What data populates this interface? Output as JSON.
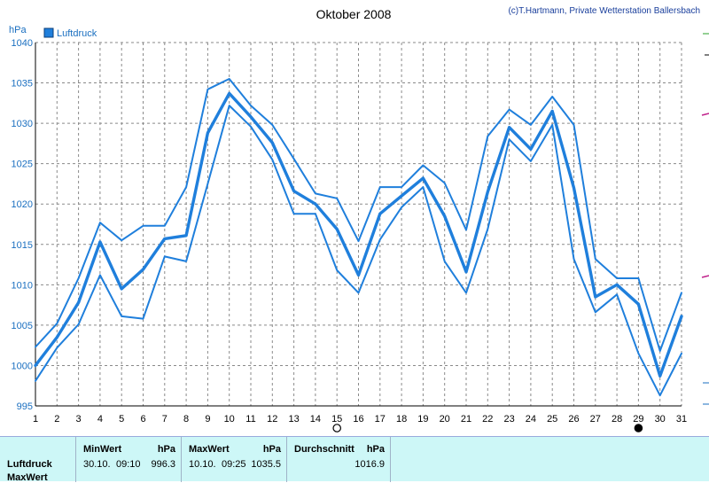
{
  "title": "Oktober 2008",
  "credit": "(c)T.Hartmann, Private Wetterstation Ballersbach",
  "legend": {
    "label": "Luftdruck",
    "color": "#1f7fdc"
  },
  "axis": {
    "unit": "hPa"
  },
  "chart_data": {
    "type": "line",
    "title": "Oktober 2008",
    "ylabel": "hPa",
    "ylim": [
      995,
      1040
    ],
    "yticks": [
      995,
      1000,
      1005,
      1010,
      1015,
      1020,
      1025,
      1030,
      1035,
      1040
    ],
    "x": [
      1,
      2,
      3,
      4,
      5,
      6,
      7,
      8,
      9,
      10,
      11,
      12,
      13,
      14,
      15,
      16,
      17,
      18,
      19,
      20,
      21,
      22,
      23,
      24,
      25,
      26,
      27,
      28,
      29,
      30,
      31
    ],
    "grid": true,
    "legend_position": "top-left",
    "series": [
      {
        "name": "Luftdruck",
        "role": "max",
        "values": [
          1002.3,
          1005.2,
          1010.8,
          1017.7,
          1015.5,
          1017.3,
          1017.3,
          1022.1,
          1034.2,
          1035.5,
          1032.2,
          1029.8,
          1025.6,
          1021.3,
          1020.7,
          1015.4,
          1022.1,
          1022.1,
          1024.8,
          1022.6,
          1016.8,
          1028.4,
          1031.7,
          1029.8,
          1033.3,
          1029.8,
          1013.2,
          1010.8,
          1010.8,
          1001.8,
          1009.0
        ]
      },
      {
        "name": "Luftdruck",
        "role": "mean",
        "values": [
          1000.0,
          1003.5,
          1007.8,
          1015.3,
          1009.5,
          1011.9,
          1015.7,
          1016.1,
          1028.8,
          1033.7,
          1030.8,
          1027.6,
          1021.6,
          1020.0,
          1016.9,
          1011.2,
          1018.8,
          1021.0,
          1023.2,
          1018.5,
          1011.6,
          1021.5,
          1029.5,
          1026.8,
          1031.5,
          1022.0,
          1008.5,
          1010.0,
          1007.6,
          998.7,
          1006.1
        ]
      },
      {
        "name": "Luftdruck",
        "role": "min",
        "values": [
          998.1,
          1002.2,
          1005.1,
          1011.2,
          1006.1,
          1005.8,
          1013.5,
          1012.9,
          1022.5,
          1032.2,
          1029.6,
          1025.5,
          1018.8,
          1018.8,
          1011.8,
          1009.0,
          1015.6,
          1019.6,
          1022.1,
          1012.9,
          1009.0,
          1016.9,
          1028.0,
          1025.3,
          1029.8,
          1013.2,
          1006.6,
          1008.8,
          1001.5,
          996.3,
          1001.5
        ]
      }
    ],
    "moon_markers": [
      {
        "day": 15,
        "phase": "full"
      },
      {
        "day": 29,
        "phase": "new"
      }
    ]
  },
  "stats": {
    "row_label": "Luftdruck",
    "row_label2": "MaxWert",
    "min": {
      "header": "MinWert",
      "unit": "hPa",
      "date": "30.10.",
      "time": "09:10",
      "value": "996.3"
    },
    "max": {
      "header": "MaxWert",
      "unit": "hPa",
      "date": "10.10.",
      "time": "09:25",
      "value": "1035.5"
    },
    "avg": {
      "header": "Durchschnitt",
      "unit": "hPa",
      "value": "1016.9"
    }
  }
}
